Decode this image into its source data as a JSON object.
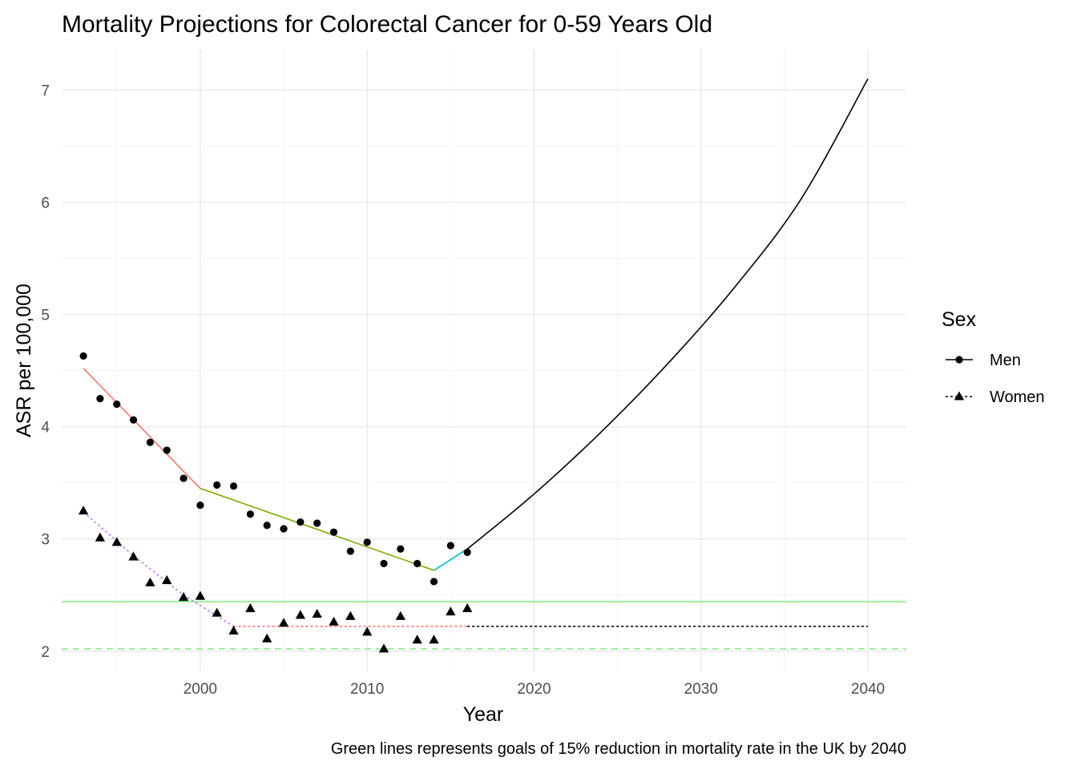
{
  "chart_data": {
    "type": "line",
    "title": "Mortality Projections for Colorectal Cancer for 0-59 Years Old",
    "xlabel": "Year",
    "ylabel": "ASR per 100,000",
    "caption": "Green lines represents goals of 15% reduction in mortality rate in the UK by 2040",
    "xlim": [
      1991.7,
      2042.3
    ],
    "ylim": [
      1.82,
      7.36
    ],
    "x_ticks": [
      2000,
      2010,
      2020,
      2030,
      2040
    ],
    "x_tick_labels": [
      "2000",
      "2010",
      "2020",
      "2030",
      "2040"
    ],
    "y_ticks": [
      2,
      3,
      4,
      5,
      6,
      7
    ],
    "y_tick_labels": [
      "2",
      "3",
      "4",
      "5",
      "6",
      "7"
    ],
    "grid": true,
    "legend": {
      "title": "Sex",
      "position": "right",
      "entries": [
        {
          "label": "Men",
          "marker": "circle",
          "linetype": "solid"
        },
        {
          "label": "Women",
          "marker": "triangle",
          "linetype": "dotted"
        }
      ]
    },
    "observed": [
      {
        "name": "Men",
        "marker": "circle",
        "x": [
          1993,
          1994,
          1995,
          1996,
          1997,
          1998,
          1999,
          2000,
          2001,
          2002,
          2003,
          2004,
          2005,
          2006,
          2007,
          2008,
          2009,
          2010,
          2011,
          2012,
          2013,
          2014,
          2015,
          2016
        ],
        "y": [
          4.63,
          4.25,
          4.2,
          4.06,
          3.86,
          3.79,
          3.54,
          3.3,
          3.48,
          3.47,
          3.22,
          3.12,
          3.09,
          3.15,
          3.14,
          3.06,
          2.89,
          2.97,
          2.78,
          2.91,
          2.78,
          2.62,
          2.94,
          2.88
        ]
      },
      {
        "name": "Women",
        "marker": "triangle",
        "x": [
          1993,
          1994,
          1995,
          1996,
          1997,
          1998,
          1999,
          2000,
          2001,
          2002,
          2003,
          2004,
          2005,
          2006,
          2007,
          2008,
          2009,
          2010,
          2011,
          2012,
          2013,
          2014,
          2015,
          2016
        ],
        "y": [
          3.25,
          3.01,
          2.97,
          2.84,
          2.61,
          2.63,
          2.48,
          2.49,
          2.34,
          2.18,
          2.38,
          2.11,
          2.25,
          2.32,
          2.33,
          2.26,
          2.31,
          2.17,
          2.02,
          2.31,
          2.1,
          2.1,
          2.35,
          2.38
        ]
      }
    ],
    "fitted_segments": [
      {
        "sex": "Men",
        "color": "#F8766D",
        "linetype": "solid",
        "x": [
          1993,
          2000
        ],
        "y": [
          4.52,
          3.45
        ]
      },
      {
        "sex": "Men",
        "color": "#7CAE00",
        "linetype": "solid",
        "x": [
          2000,
          2014
        ],
        "y": [
          3.45,
          2.72
        ]
      },
      {
        "sex": "Men",
        "color": "#00BFC4",
        "linetype": "solid",
        "x": [
          2014,
          2016
        ],
        "y": [
          2.72,
          2.91
        ]
      },
      {
        "sex": "Women",
        "color": "#C77CFF",
        "linetype": "dotted",
        "x": [
          1993,
          1996,
          1999,
          2002
        ],
        "y": [
          3.24,
          2.85,
          2.5,
          2.22
        ]
      },
      {
        "sex": "Women",
        "color": "#F8766D",
        "linetype": "dotted",
        "x": [
          2002,
          2016
        ],
        "y": [
          2.22,
          2.22
        ]
      }
    ],
    "projections": [
      {
        "name": "Men",
        "color": "#000000",
        "linetype": "solid",
        "x": [
          2016,
          2020,
          2024,
          2028,
          2032,
          2036,
          2040
        ],
        "y": [
          2.91,
          3.4,
          3.95,
          4.56,
          5.24,
          6.03,
          7.1
        ]
      },
      {
        "name": "Women",
        "color": "#000000",
        "linetype": "dotted",
        "x": [
          2016,
          2040
        ],
        "y": [
          2.22,
          2.22
        ]
      }
    ],
    "reference_lines": [
      {
        "y": 2.44,
        "color": "#90EE90",
        "linetype": "solid"
      },
      {
        "y": 2.02,
        "color": "#90EE90",
        "linetype": "dashed"
      }
    ]
  }
}
